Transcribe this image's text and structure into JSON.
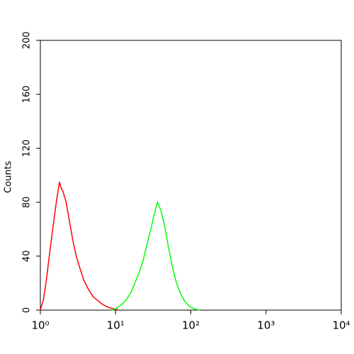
{
  "chart_data": {
    "type": "line",
    "y_label": "Counts",
    "xscale": "log",
    "xlim": [
      1,
      10000
    ],
    "xticks": [
      {
        "value": 1,
        "label": "10⁰"
      },
      {
        "value": 10,
        "label": "10¹"
      },
      {
        "value": 100,
        "label": "10²"
      },
      {
        "value": 1000,
        "label": "10³"
      },
      {
        "value": 10000,
        "label": "10⁴"
      }
    ],
    "ylim": [
      0,
      200
    ],
    "yticks": [
      0,
      40,
      80,
      120,
      160,
      200
    ],
    "series": [
      {
        "color": "#ff0000",
        "x": [
          1,
          1.1,
          1.2,
          1.35,
          1.5,
          1.65,
          1.8,
          1.9,
          2.0,
          2.2,
          2.4,
          2.7,
          3.0,
          3.4,
          3.8,
          4.3,
          5.0,
          5.8,
          6.8,
          8,
          9.5,
          11
        ],
        "values": [
          0,
          8,
          22,
          45,
          65,
          82,
          95,
          90,
          88,
          80,
          68,
          52,
          40,
          30,
          22,
          16,
          10,
          7,
          4,
          2,
          1,
          0
        ]
      },
      {
        "color": "#00ff00",
        "x": [
          9,
          10,
          12,
          14,
          16,
          18,
          20,
          23,
          26,
          30,
          33,
          36,
          40,
          45,
          50,
          56,
          63,
          72,
          82,
          95,
          110,
          130
        ],
        "values": [
          0,
          1,
          4,
          8,
          13,
          20,
          26,
          36,
          48,
          62,
          72,
          80,
          74,
          62,
          48,
          34,
          22,
          13,
          7,
          3,
          1,
          0
        ]
      }
    ]
  }
}
